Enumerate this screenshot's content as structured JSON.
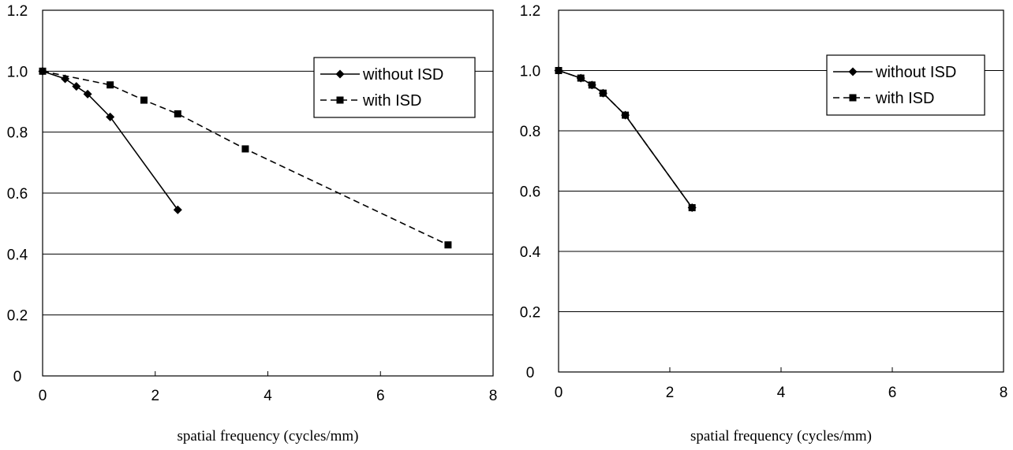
{
  "chart_data": [
    {
      "type": "line",
      "title": "",
      "xlabel": "spatial frequency (cycles/mm)",
      "ylabel": "",
      "xlim": [
        0,
        8
      ],
      "ylim": [
        0,
        1.2
      ],
      "x_ticks": [
        "0",
        "2",
        "4",
        "6",
        "8"
      ],
      "y_ticks": [
        "0",
        "0.2",
        "0.4",
        "0.6",
        "0.8",
        "1.0",
        "1.2"
      ],
      "grid": "horizontal",
      "legend": "top-right",
      "series": [
        {
          "name": "without ISD",
          "marker": "diamond",
          "line": "solid",
          "x": [
            0,
            0.4,
            0.6,
            0.8,
            1.2,
            2.4
          ],
          "y": [
            1.0,
            0.975,
            0.95,
            0.925,
            0.85,
            0.545
          ]
        },
        {
          "name": "with ISD",
          "marker": "square",
          "line": "dashed",
          "x": [
            0,
            1.2,
            1.8,
            2.4,
            3.6,
            7.2
          ],
          "y": [
            1.0,
            0.955,
            0.905,
            0.86,
            0.745,
            0.43
          ]
        }
      ]
    },
    {
      "type": "line",
      "title": "",
      "xlabel": "spatial frequency (cycles/mm)",
      "ylabel": "",
      "xlim": [
        0,
        8
      ],
      "ylim": [
        0,
        1.2
      ],
      "x_ticks": [
        "0",
        "2",
        "4",
        "6",
        "8"
      ],
      "y_ticks": [
        "0",
        "0.2",
        "0.4",
        "0.6",
        "0.8",
        "1.0",
        "1.2"
      ],
      "grid": "horizontal",
      "legend": "top-right",
      "series": [
        {
          "name": "without ISD",
          "marker": "diamond",
          "line": "solid",
          "x": [
            0,
            0.4,
            0.6,
            0.8,
            1.2,
            2.4
          ],
          "y": [
            1.0,
            0.975,
            0.952,
            0.925,
            0.852,
            0.545
          ]
        },
        {
          "name": "with ISD",
          "marker": "square",
          "line": "dashed",
          "x": [
            0,
            0.4,
            0.6,
            0.8,
            1.2,
            2.4
          ],
          "y": [
            1.0,
            0.975,
            0.952,
            0.925,
            0.852,
            0.545
          ]
        }
      ]
    }
  ]
}
